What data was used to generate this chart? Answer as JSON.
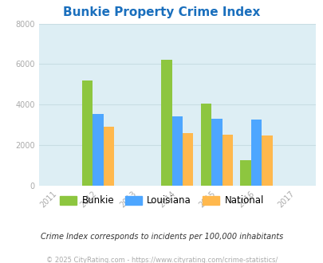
{
  "title": "Bunkie Property Crime Index",
  "all_years": [
    2011,
    2012,
    2013,
    2014,
    2015,
    2016,
    2017
  ],
  "data_years": [
    2012,
    2014,
    2015,
    2016
  ],
  "bunkie": [
    5200,
    6200,
    4050,
    1250
  ],
  "louisiana": [
    3550,
    3400,
    3300,
    3270
  ],
  "national": [
    2900,
    2580,
    2490,
    2480
  ],
  "bunkie_color": "#8dc63f",
  "louisiana_color": "#4da6ff",
  "national_color": "#ffb84d",
  "bg_color": "#ddeef4",
  "ylim": [
    0,
    8000
  ],
  "yticks": [
    0,
    2000,
    4000,
    6000,
    8000
  ],
  "legend_labels": [
    "Bunkie",
    "Louisiana",
    "National"
  ],
  "footnote1": "Crime Index corresponds to incidents per 100,000 inhabitants",
  "footnote2": "© 2025 CityRating.com - https://www.cityrating.com/crime-statistics/",
  "bar_width": 0.27,
  "title_color": "#1a6fbd",
  "footnote1_color": "#333333",
  "footnote2_color": "#aaaaaa",
  "tick_color": "#aaaaaa",
  "grid_color": "#c8dde3"
}
